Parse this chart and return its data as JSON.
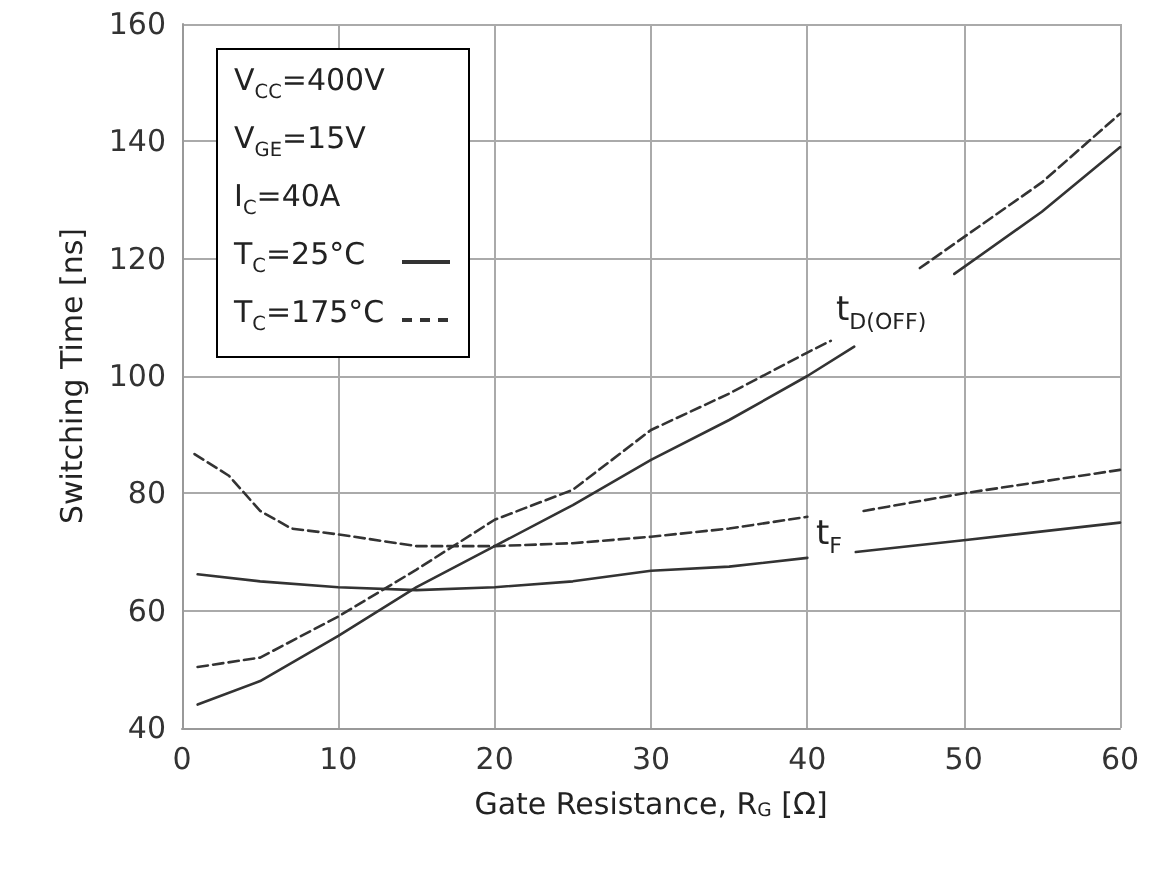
{
  "chart_data": {
    "type": "line",
    "xlabel": "Gate Resistance, R$_{G}$ [Ω]",
    "ylabel": "Switching Time [ns]",
    "xlim": [
      0,
      60
    ],
    "ylim": [
      40,
      160
    ],
    "xticks": [
      0,
      10,
      20,
      30,
      40,
      50,
      60
    ],
    "yticks": [
      40,
      60,
      80,
      100,
      120,
      140,
      160
    ],
    "grid": true,
    "legend": "top left",
    "marker": "none",
    "annotations": [
      "V$_{CC}$=400V",
      "V$_{GE}$=15V",
      "I$_{C}$=40A",
      "t$_{D(OFF)}$",
      "t$_{F}$"
    ],
    "series": [
      {
        "name": "T$_{C}$=25°C",
        "color": "#333333",
        "line_style": "solid",
        "x": [
          1,
          5,
          10,
          15,
          20,
          25,
          30,
          35,
          40,
          43,
          46,
          49.4,
          55,
          60
        ],
        "values": [
          44,
          48,
          55.7,
          64,
          71,
          78,
          85.7,
          92.5,
          100,
          105,
          null,
          117.4,
          128,
          139
        ]
      },
      {
        "name": "T$_{C}$=175°C",
        "color": "#333333",
        "line_style": "dashed",
        "x": [
          1,
          5,
          10,
          15,
          20,
          25,
          30,
          35,
          40,
          41.5,
          44,
          47.2,
          55,
          60
        ],
        "values": [
          50.4,
          52,
          59,
          67,
          75.5,
          80.6,
          90.8,
          97,
          104,
          106,
          null,
          118.4,
          133,
          144.7
        ]
      },
      {
        "color": "#333333",
        "line_style": "solid",
        "x": [
          1,
          5,
          10,
          15,
          20,
          25,
          30,
          35,
          40,
          41.5,
          43.1,
          50,
          60
        ],
        "values": [
          66.2,
          65,
          64,
          63.5,
          64,
          65,
          66.8,
          67.5,
          69,
          null,
          70,
          72,
          75
        ]
      },
      {
        "color": "#333333",
        "line_style": "dashed",
        "x": [
          0.8,
          3,
          5,
          7,
          10,
          15,
          20,
          25,
          30,
          35,
          40,
          41.8,
          43.6,
          50,
          60
        ],
        "values": [
          86.7,
          83,
          77,
          74,
          73,
          71,
          71,
          71.5,
          72.6,
          74,
          76,
          null,
          77,
          80,
          84
        ]
      }
    ]
  }
}
